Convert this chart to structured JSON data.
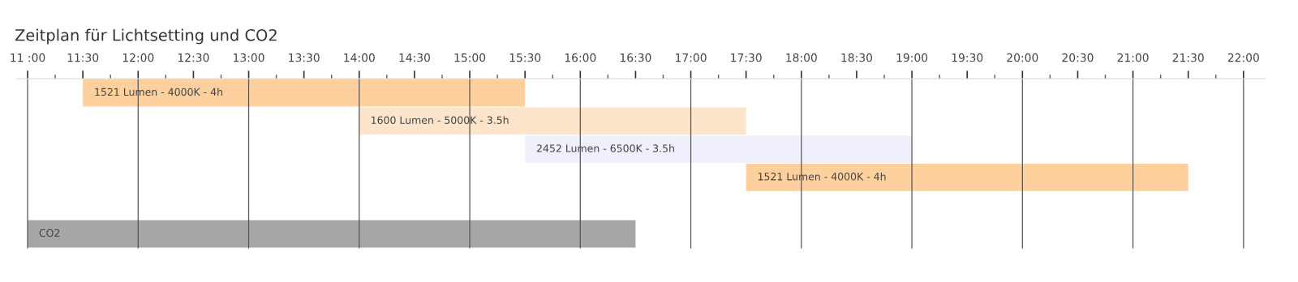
{
  "chart_data": {
    "type": "bar",
    "orientation": "horizontal",
    "title": "Zeitplan für Lichtsetting und CO2",
    "categories": [
      null,
      null,
      null,
      null,
      null,
      null
    ],
    "base": [
      11.5,
      14,
      15.5,
      17.5,
      null,
      11
    ],
    "values": [
      4,
      3.5,
      3.5,
      4,
      null,
      5.5
    ],
    "colors": [
      "#fdd09e",
      "#fde5cc",
      "#f0f0fc",
      "#fdd09e",
      "#ffffff",
      "#a6a6a6"
    ],
    "annotations": [
      "1521 Lumen - 4000K - 4h",
      "1600 Lumen - 5000K - 3.5h",
      "2452 Lumen - 6500K - 3.5h",
      "1521 Lumen - 4000K - 4h",
      "CO2"
    ],
    "xlim": [
      10.9,
      22.2
    ],
    "xticks": [
      {
        "value": 11,
        "label": "11 :00"
      },
      {
        "value": 11.25,
        "label": null
      },
      {
        "value": 11.5,
        "label": "11:30"
      },
      {
        "value": 11.75,
        "label": null
      },
      {
        "value": 12,
        "label": "12:00"
      },
      {
        "value": 12.25,
        "label": null
      },
      {
        "value": 12.5,
        "label": "12:30"
      },
      {
        "value": 12.75,
        "label": null
      },
      {
        "value": 13,
        "label": "13:00"
      },
      {
        "value": 13.25,
        "label": null
      },
      {
        "value": 13.5,
        "label": "13:30"
      },
      {
        "value": 13.75,
        "label": null
      },
      {
        "value": 14,
        "label": "14:00"
      },
      {
        "value": 14.25,
        "label": null
      },
      {
        "value": 14.5,
        "label": "14:30"
      },
      {
        "value": 14.75,
        "label": null
      },
      {
        "value": 15,
        "label": "15:00"
      },
      {
        "value": 15.25,
        "label": null
      },
      {
        "value": 15.5,
        "label": "15:30"
      },
      {
        "value": 15.75,
        "label": null
      },
      {
        "value": 16,
        "label": "16:00"
      },
      {
        "value": 16.25,
        "label": null
      },
      {
        "value": 16.5,
        "label": "16:30"
      },
      {
        "value": 16.75,
        "label": null
      },
      {
        "value": 17,
        "label": "17:00"
      },
      {
        "value": 17.25,
        "label": null
      },
      {
        "value": 17.5,
        "label": "17:30"
      },
      {
        "value": 17.75,
        "label": null
      },
      {
        "value": 18,
        "label": "18:00"
      },
      {
        "value": 18.25,
        "label": null
      },
      {
        "value": 18.5,
        "label": "18:30"
      },
      {
        "value": 18.75,
        "label": null
      },
      {
        "value": 19,
        "label": "19:00"
      },
      {
        "value": 19.25,
        "label": null
      },
      {
        "value": 19.5,
        "label": "19:30"
      },
      {
        "value": 19.75,
        "label": null
      },
      {
        "value": 20,
        "label": "20:00"
      },
      {
        "value": 20.25,
        "label": null
      },
      {
        "value": 20.5,
        "label": "20:30"
      },
      {
        "value": 20.75,
        "label": null
      },
      {
        "value": 21,
        "label": "21:00"
      },
      {
        "value": 21.25,
        "label": null
      },
      {
        "value": 21.5,
        "label": "21:30"
      },
      {
        "value": 21.75,
        "label": null
      },
      {
        "value": 22,
        "label": "22:00"
      }
    ],
    "ref_lines": [
      {
        "axis": "x",
        "value": 11
      },
      {
        "axis": "x",
        "value": 12
      },
      {
        "axis": "x",
        "value": 13
      },
      {
        "axis": "x",
        "value": 14
      },
      {
        "axis": "x",
        "value": 15
      },
      {
        "axis": "x",
        "value": 16
      },
      {
        "axis": "x",
        "value": 17
      },
      {
        "axis": "x",
        "value": 18
      },
      {
        "axis": "x",
        "value": 19
      },
      {
        "axis": "x",
        "value": 20
      },
      {
        "axis": "x",
        "value": 21
      },
      {
        "axis": "x",
        "value": 22
      }
    ],
    "tick_labels": "x",
    "grid": false,
    "legend": false
  }
}
